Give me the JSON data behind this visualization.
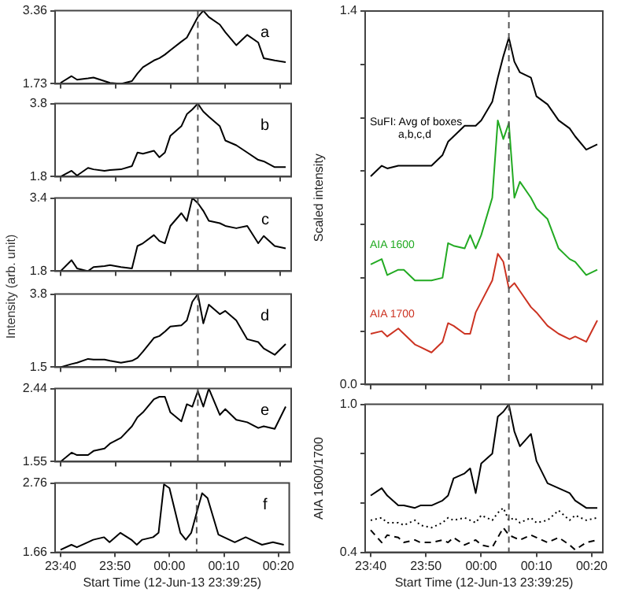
{
  "chart_data": [
    {
      "type": "line",
      "annotations": [
        "a"
      ],
      "tick_labels": "y",
      "x": [
        "--06-12T23:40",
        "--06-12T23:42",
        "--06-12T23:43",
        "--06-12T23:45",
        "--06-12T23:46",
        "--06-12T23:48",
        "--06-12T23:49",
        "--06-12T23:51",
        "--06-12T23:53",
        "--06-12T23:54",
        "--06-12T23:55",
        "--06-12T23:57",
        "--06-12T23:58",
        "--06-12T23:59",
        "--06-13T00:00",
        "--06-13T00:02",
        "--06-13T00:03",
        "--06-13T00:04",
        "--06-13T00:05",
        "--06-13T00:06",
        "--06-13T00:07",
        "--06-13T00:09",
        "--06-13T00:10",
        "--06-13T00:12",
        "--06-13T00:14",
        "--06-13T00:16",
        "--06-13T00:17",
        "--06-13T00:19",
        "--06-13T00:21"
      ],
      "xlim": [
        "--06-12T23:39",
        "--06-13T00:22"
      ],
      "xticks": [
        {
          "value": "--06-12T23:40",
          "label": null
        },
        {
          "value": "--06-12T23:50",
          "label": null
        },
        {
          "value": "--06-13T00:00",
          "label": null
        },
        {
          "value": "--06-13T00:10",
          "label": null
        },
        {
          "value": "--06-13T00:20",
          "label": null
        }
      ],
      "ylim": [
        1.73,
        3.36
      ],
      "yticks": [
        1.73,
        3.36
      ],
      "ref_lines": [
        {
          "axis": "x",
          "value": "--06-13T00:05",
          "color": "#555555",
          "line_style": "dashed"
        }
      ],
      "series": [
        {
          "color": "#000000",
          "values": [
            1.75,
            1.9,
            1.82,
            1.85,
            1.87,
            1.79,
            1.75,
            1.73,
            1.79,
            1.96,
            2.1,
            2.25,
            2.3,
            2.38,
            2.48,
            2.67,
            2.76,
            2.99,
            3.22,
            3.36,
            3.22,
            3.05,
            2.88,
            2.59,
            2.82,
            2.65,
            2.3,
            2.25,
            2.21
          ]
        }
      ]
    },
    {
      "type": "line",
      "annotations": [
        "b"
      ],
      "tick_labels": "y",
      "x": [
        "--06-12T23:40",
        "--06-12T23:42",
        "--06-12T23:43",
        "--06-12T23:45",
        "--06-12T23:46",
        "--06-12T23:48",
        "--06-12T23:49",
        "--06-12T23:51",
        "--06-12T23:53",
        "--06-12T23:54",
        "--06-12T23:55",
        "--06-12T23:57",
        "--06-12T23:58",
        "--06-12T23:59",
        "--06-13T00:00",
        "--06-13T00:02",
        "--06-13T00:03",
        "--06-13T00:04",
        "--06-13T00:05",
        "--06-13T00:06",
        "--06-13T00:07",
        "--06-13T00:09",
        "--06-13T00:10",
        "--06-13T00:12",
        "--06-13T00:14",
        "--06-13T00:16",
        "--06-13T00:17",
        "--06-13T00:19",
        "--06-13T00:21"
      ],
      "xlim": [
        "--06-12T23:39",
        "--06-13T00:22"
      ],
      "xticks": [
        {
          "value": "--06-12T23:40",
          "label": null
        },
        {
          "value": "--06-12T23:50",
          "label": null
        },
        {
          "value": "--06-13T00:00",
          "label": null
        },
        {
          "value": "--06-13T00:10",
          "label": null
        },
        {
          "value": "--06-13T00:20",
          "label": null
        }
      ],
      "ylim": [
        1.8,
        3.8
      ],
      "yticks": [
        1.8,
        3.8
      ],
      "ref_lines": [
        {
          "axis": "x",
          "value": "--06-13T00:05",
          "color": "#555555",
          "line_style": "dashed"
        }
      ],
      "series": [
        {
          "color": "#000000",
          "values": [
            1.8,
            1.96,
            1.83,
            2.04,
            2.0,
            1.96,
            1.98,
            2.0,
            2.09,
            2.46,
            2.43,
            2.51,
            2.33,
            2.46,
            2.92,
            3.18,
            3.51,
            3.64,
            3.8,
            3.58,
            3.44,
            3.18,
            2.79,
            2.66,
            2.46,
            2.26,
            2.22,
            2.06,
            2.06
          ]
        }
      ]
    },
    {
      "type": "line",
      "annotations": [
        "c"
      ],
      "tick_labels": "y",
      "x": [
        "--06-12T23:40",
        "--06-12T23:42",
        "--06-12T23:43",
        "--06-12T23:45",
        "--06-12T23:46",
        "--06-12T23:48",
        "--06-12T23:49",
        "--06-12T23:51",
        "--06-12T23:53",
        "--06-12T23:54",
        "--06-12T23:55",
        "--06-12T23:57",
        "--06-12T23:58",
        "--06-12T23:59",
        "--06-13T00:00",
        "--06-13T00:02",
        "--06-13T00:03",
        "--06-13T00:04",
        "--06-13T00:05",
        "--06-13T00:06",
        "--06-13T00:07",
        "--06-13T00:09",
        "--06-13T00:10",
        "--06-13T00:12",
        "--06-13T00:14",
        "--06-13T00:16",
        "--06-13T00:17",
        "--06-13T00:19",
        "--06-13T00:21"
      ],
      "xlim": [
        "--06-12T23:39",
        "--06-13T00:22"
      ],
      "xticks": [
        {
          "value": "--06-12T23:40",
          "label": null
        },
        {
          "value": "--06-12T23:50",
          "label": null
        },
        {
          "value": "--06-13T00:00",
          "label": null
        },
        {
          "value": "--06-13T00:10",
          "label": null
        },
        {
          "value": "--06-13T00:20",
          "label": null
        }
      ],
      "ylim": [
        1.8,
        3.4
      ],
      "yticks": [
        1.8,
        3.4
      ],
      "ref_lines": [
        {
          "axis": "x",
          "value": "--06-13T00:05",
          "color": "#555555",
          "line_style": "dashed"
        }
      ],
      "series": [
        {
          "color": "#000000",
          "values": [
            1.8,
            2.04,
            1.86,
            1.8,
            1.89,
            1.91,
            1.93,
            1.89,
            1.86,
            2.35,
            2.41,
            2.59,
            2.46,
            2.41,
            2.79,
            3.07,
            2.9,
            3.4,
            3.29,
            3.12,
            2.9,
            2.85,
            2.79,
            2.74,
            2.79,
            2.41,
            2.57,
            2.35,
            2.3
          ]
        }
      ]
    },
    {
      "type": "line",
      "ylabel": "Intensity (arb. unit)",
      "annotations": [
        "d"
      ],
      "tick_labels": "y",
      "x": [
        "--06-12T23:40",
        "--06-12T23:42",
        "--06-12T23:43",
        "--06-12T23:45",
        "--06-12T23:46",
        "--06-12T23:48",
        "--06-12T23:49",
        "--06-12T23:51",
        "--06-12T23:53",
        "--06-12T23:54",
        "--06-12T23:55",
        "--06-12T23:57",
        "--06-12T23:58",
        "--06-12T23:59",
        "--06-13T00:00",
        "--06-13T00:02",
        "--06-13T00:03",
        "--06-13T00:04",
        "--06-13T00:05",
        "--06-13T00:06",
        "--06-13T00:07",
        "--06-13T00:09",
        "--06-13T00:10",
        "--06-13T00:12",
        "--06-13T00:14",
        "--06-13T00:16",
        "--06-13T00:17",
        "--06-13T00:19",
        "--06-13T00:21"
      ],
      "xlim": [
        "--06-12T23:39",
        "--06-13T00:22"
      ],
      "xticks": [
        {
          "value": "--06-12T23:40",
          "label": null
        },
        {
          "value": "--06-12T23:50",
          "label": null
        },
        {
          "value": "--06-13T00:00",
          "label": null
        },
        {
          "value": "--06-13T00:10",
          "label": null
        },
        {
          "value": "--06-13T00:20",
          "label": null
        }
      ],
      "ylim": [
        1.5,
        3.8
      ],
      "yticks": [
        1.5,
        3.8
      ],
      "ref_lines": [
        {
          "axis": "x",
          "value": "--06-13T00:05",
          "color": "#555555",
          "line_style": "dashed"
        }
      ],
      "series": [
        {
          "color": "#000000",
          "values": [
            1.5,
            1.6,
            1.64,
            1.76,
            1.74,
            1.74,
            1.7,
            1.64,
            1.7,
            1.79,
            1.99,
            2.42,
            2.48,
            2.62,
            2.78,
            2.82,
            2.97,
            3.56,
            3.8,
            2.88,
            3.47,
            3.17,
            3.27,
            2.97,
            2.38,
            2.29,
            2.09,
            1.89,
            2.23
          ]
        }
      ]
    },
    {
      "type": "line",
      "annotations": [
        "e"
      ],
      "tick_labels": "y",
      "x": [
        "--06-12T23:40",
        "--06-12T23:42",
        "--06-12T23:43",
        "--06-12T23:45",
        "--06-12T23:46",
        "--06-12T23:48",
        "--06-12T23:49",
        "--06-12T23:51",
        "--06-12T23:53",
        "--06-12T23:54",
        "--06-12T23:55",
        "--06-12T23:57",
        "--06-12T23:58",
        "--06-12T23:59",
        "--06-13T00:00",
        "--06-13T00:02",
        "--06-13T00:03",
        "--06-13T00:04",
        "--06-13T00:05",
        "--06-13T00:06",
        "--06-13T00:07",
        "--06-13T00:09",
        "--06-13T00:10",
        "--06-13T00:12",
        "--06-13T00:14",
        "--06-13T00:16",
        "--06-13T00:17",
        "--06-13T00:19",
        "--06-13T00:21"
      ],
      "xlim": [
        "--06-12T23:39",
        "--06-13T00:22"
      ],
      "xticks": [
        {
          "value": "--06-12T23:40",
          "label": null
        },
        {
          "value": "--06-12T23:50",
          "label": null
        },
        {
          "value": "--06-13T00:00",
          "label": null
        },
        {
          "value": "--06-13T00:10",
          "label": null
        },
        {
          "value": "--06-13T00:20",
          "label": null
        }
      ],
      "ylim": [
        1.55,
        2.44
      ],
      "yticks": [
        1.55,
        2.44
      ],
      "ref_lines": [
        {
          "axis": "x",
          "value": "--06-13T00:05",
          "color": "#555555",
          "line_style": "dashed"
        }
      ],
      "series": [
        {
          "color": "#000000",
          "values": [
            1.55,
            1.66,
            1.63,
            1.63,
            1.68,
            1.71,
            1.77,
            1.84,
            1.98,
            2.09,
            2.15,
            2.31,
            2.34,
            2.34,
            2.15,
            2.04,
            2.25,
            2.22,
            2.41,
            2.22,
            2.44,
            2.12,
            2.19,
            2.06,
            2.03,
            1.96,
            1.98,
            1.95,
            2.22
          ]
        }
      ]
    },
    {
      "type": "line",
      "xlabel": "Start Time (12-Jun-13 23:39:25)",
      "annotations": [
        "f"
      ],
      "x": [
        "--06-12T23:40",
        "--06-12T23:42",
        "--06-12T23:43",
        "--06-12T23:45",
        "--06-12T23:46",
        "--06-12T23:48",
        "--06-12T23:49",
        "--06-12T23:51",
        "--06-12T23:53",
        "--06-12T23:54",
        "--06-12T23:55",
        "--06-12T23:57",
        "--06-12T23:58",
        "--06-12T23:59",
        "--06-13T00:00",
        "--06-13T00:02",
        "--06-13T00:03",
        "--06-13T00:04",
        "--06-13T00:05",
        "--06-13T00:06",
        "--06-13T00:07",
        "--06-13T00:09",
        "--06-13T00:10",
        "--06-13T00:12",
        "--06-13T00:14",
        "--06-13T00:16",
        "--06-13T00:17",
        "--06-13T00:19",
        "--06-13T00:21"
      ],
      "xlim": [
        "--06-12T23:39",
        "--06-13T00:22"
      ],
      "xticks": [
        {
          "value": "--06-12T23:40",
          "label": "23:40"
        },
        {
          "value": "--06-12T23:50",
          "label": "23:50"
        },
        {
          "value": "--06-13T00:00",
          "label": "00:00"
        },
        {
          "value": "--06-13T00:10",
          "label": "00:10"
        },
        {
          "value": "--06-13T00:20",
          "label": "00:20"
        }
      ],
      "ylim": [
        1.66,
        2.76
      ],
      "yticks": [
        1.66,
        2.76
      ],
      "ref_lines": [
        {
          "axis": "x",
          "value": "--06-13T00:05",
          "color": "#555555",
          "line_style": "dashed"
        }
      ],
      "series": [
        {
          "color": "#000000",
          "values": [
            1.7,
            1.78,
            1.74,
            1.82,
            1.86,
            1.9,
            1.82,
            1.97,
            1.86,
            1.78,
            1.86,
            1.9,
            1.97,
            2.74,
            2.68,
            1.97,
            1.86,
            1.97,
            2.29,
            2.6,
            2.52,
            1.94,
            1.9,
            1.82,
            1.9,
            1.82,
            1.78,
            1.82,
            1.78
          ]
        }
      ]
    },
    {
      "type": "line",
      "ylabel": "Scaled intensity",
      "tick_labels": "y",
      "x": [
        "--06-12T23:40",
        "--06-12T23:42",
        "--06-12T23:43",
        "--06-12T23:45",
        "--06-12T23:46",
        "--06-12T23:48",
        "--06-12T23:49",
        "--06-12T23:51",
        "--06-12T23:53",
        "--06-12T23:54",
        "--06-12T23:55",
        "--06-12T23:57",
        "--06-12T23:58",
        "--06-12T23:59",
        "--06-13T00:00",
        "--06-13T00:02",
        "--06-13T00:03",
        "--06-13T00:04",
        "--06-13T00:05",
        "--06-13T00:06",
        "--06-13T00:07",
        "--06-13T00:09",
        "--06-13T00:10",
        "--06-13T00:12",
        "--06-13T00:14",
        "--06-13T00:16",
        "--06-13T00:17",
        "--06-13T00:19",
        "--06-13T00:21"
      ],
      "xlim": [
        "--06-12T23:39",
        "--06-13T00:22"
      ],
      "xticks": [
        {
          "value": "--06-12T23:40",
          "label": null
        },
        {
          "value": "--06-12T23:50",
          "label": null
        },
        {
          "value": "--06-13T00:00",
          "label": null
        },
        {
          "value": "--06-13T00:10",
          "label": null
        },
        {
          "value": "--06-13T00:20",
          "label": null
        }
      ],
      "ylim": [
        0,
        1.4
      ],
      "yticks": [
        {
          "value": 0,
          "label": "0.0"
        },
        {
          "value": 0.2,
          "label": null
        },
        {
          "value": 0.4,
          "label": null
        },
        {
          "value": 0.6,
          "label": null
        },
        {
          "value": 0.8,
          "label": null
        },
        {
          "value": 1.0,
          "label": null
        },
        {
          "value": 1.2,
          "label": null
        },
        {
          "value": 1.4,
          "label": "1.4"
        }
      ],
      "ref_lines": [
        {
          "axis": "x",
          "value": "--06-13T00:05",
          "color": "#555555",
          "line_style": "dashed"
        }
      ],
      "series": [
        {
          "name": "SuFI: Avg of boxes a,b,c,d",
          "color": "#000000",
          "values": [
            0.78,
            0.82,
            0.81,
            0.82,
            0.82,
            0.82,
            0.82,
            0.82,
            0.86,
            0.91,
            0.93,
            0.97,
            0.97,
            0.97,
            0.99,
            1.06,
            1.15,
            1.23,
            1.3,
            1.21,
            1.17,
            1.15,
            1.08,
            1.05,
            0.99,
            0.96,
            0.93,
            0.88,
            0.9
          ]
        },
        {
          "name": "AIA 1600",
          "color": "#22aa22",
          "values": [
            0.45,
            0.47,
            0.41,
            0.43,
            0.43,
            0.39,
            0.39,
            0.39,
            0.4,
            0.53,
            0.52,
            0.51,
            0.56,
            0.51,
            0.56,
            0.7,
            0.99,
            0.92,
            0.98,
            0.7,
            0.76,
            0.7,
            0.66,
            0.62,
            0.51,
            0.47,
            0.46,
            0.41,
            0.43
          ]
        },
        {
          "name": "AIA 1700",
          "color": "#cc3322",
          "values": [
            0.19,
            0.2,
            0.18,
            0.21,
            0.19,
            0.15,
            0.14,
            0.12,
            0.16,
            0.23,
            0.22,
            0.19,
            0.19,
            0.27,
            0.31,
            0.39,
            0.49,
            0.46,
            0.36,
            0.38,
            0.35,
            0.29,
            0.27,
            0.22,
            0.19,
            0.17,
            0.18,
            0.16,
            0.24
          ]
        }
      ]
    },
    {
      "type": "line",
      "ylabel": "AIA 1600/1700",
      "xlabel": "Start Time (12-Jun-13 23:39:25)",
      "x": [
        "--06-12T23:40",
        "--06-12T23:42",
        "--06-12T23:43",
        "--06-12T23:45",
        "--06-12T23:46",
        "--06-12T23:48",
        "--06-12T23:49",
        "--06-12T23:51",
        "--06-12T23:53",
        "--06-12T23:54",
        "--06-12T23:55",
        "--06-12T23:57",
        "--06-12T23:58",
        "--06-12T23:59",
        "--06-13T00:00",
        "--06-13T00:02",
        "--06-13T00:03",
        "--06-13T00:04",
        "--06-13T00:05",
        "--06-13T00:06",
        "--06-13T00:07",
        "--06-13T00:09",
        "--06-13T00:10",
        "--06-13T00:12",
        "--06-13T00:14",
        "--06-13T00:16",
        "--06-13T00:17",
        "--06-13T00:19",
        "--06-13T00:21"
      ],
      "xlim": [
        "--06-12T23:39",
        "--06-13T00:22"
      ],
      "xticks": [
        {
          "value": "--06-12T23:40",
          "label": "23:40"
        },
        {
          "value": "--06-12T23:50",
          "label": "23:50"
        },
        {
          "value": "--06-13T00:00",
          "label": "00:00"
        },
        {
          "value": "--06-13T00:10",
          "label": "00:10"
        },
        {
          "value": "--06-13T00:20",
          "label": "00:20"
        }
      ],
      "ylim": [
        0.4,
        1.0
      ],
      "yticks": [
        {
          "value": 0.4,
          "label": "0.4"
        },
        {
          "value": 0.6,
          "label": null
        },
        {
          "value": 0.8,
          "label": null
        },
        {
          "value": 1.0,
          "label": "1.0"
        }
      ],
      "ref_lines": [
        {
          "axis": "x",
          "value": "--06-13T00:05",
          "color": "#555555",
          "line_style": "dashed"
        }
      ],
      "series": [
        {
          "color": "#000000",
          "values": [
            0.63,
            0.66,
            0.63,
            0.59,
            0.59,
            0.58,
            0.59,
            0.59,
            0.61,
            0.63,
            0.7,
            0.72,
            0.74,
            0.64,
            0.76,
            0.8,
            0.95,
            0.97,
            1.0,
            0.89,
            0.83,
            0.88,
            0.77,
            0.68,
            0.66,
            0.64,
            0.61,
            0.58,
            0.58
          ]
        },
        {
          "color": "#000000",
          "line_style": "dotted",
          "values": [
            0.53,
            0.54,
            0.52,
            0.52,
            0.51,
            0.53,
            0.51,
            0.5,
            0.52,
            0.54,
            0.53,
            0.54,
            0.53,
            0.52,
            0.55,
            0.53,
            0.56,
            0.58,
            0.53,
            0.54,
            0.52,
            0.54,
            0.52,
            0.53,
            0.57,
            0.53,
            0.55,
            0.53,
            0.54
          ]
        },
        {
          "color": "#000000",
          "line_style": "dashed",
          "values": [
            0.49,
            0.44,
            0.47,
            0.46,
            0.44,
            0.45,
            0.44,
            0.44,
            0.45,
            0.44,
            0.46,
            0.43,
            0.44,
            0.45,
            0.43,
            0.42,
            0.46,
            0.5,
            0.47,
            0.46,
            0.45,
            0.47,
            0.46,
            0.44,
            0.46,
            0.43,
            0.41,
            0.44,
            0.45
          ]
        }
      ]
    }
  ]
}
